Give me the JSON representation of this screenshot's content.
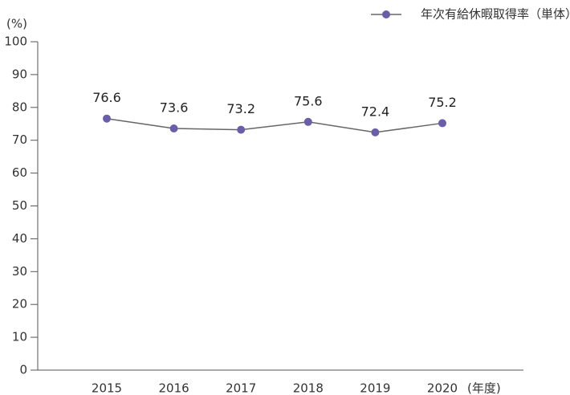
{
  "chart_data": {
    "type": "line",
    "y_unit": "(%)",
    "x_unit": "(年度)",
    "categories": [
      "2015",
      "2016",
      "2017",
      "2018",
      "2019",
      "2020"
    ],
    "series": [
      {
        "name": "年次有給休暇取得率（単体）",
        "color": "#6a5ea8",
        "line_color": "#666666",
        "values": [
          76.6,
          73.6,
          73.2,
          75.6,
          72.4,
          75.2
        ]
      }
    ],
    "ylim": [
      0,
      100
    ],
    "yticks": [
      0,
      10,
      20,
      30,
      40,
      50,
      60,
      70,
      80,
      90,
      100
    ],
    "grid": false,
    "legend": "top-right"
  }
}
